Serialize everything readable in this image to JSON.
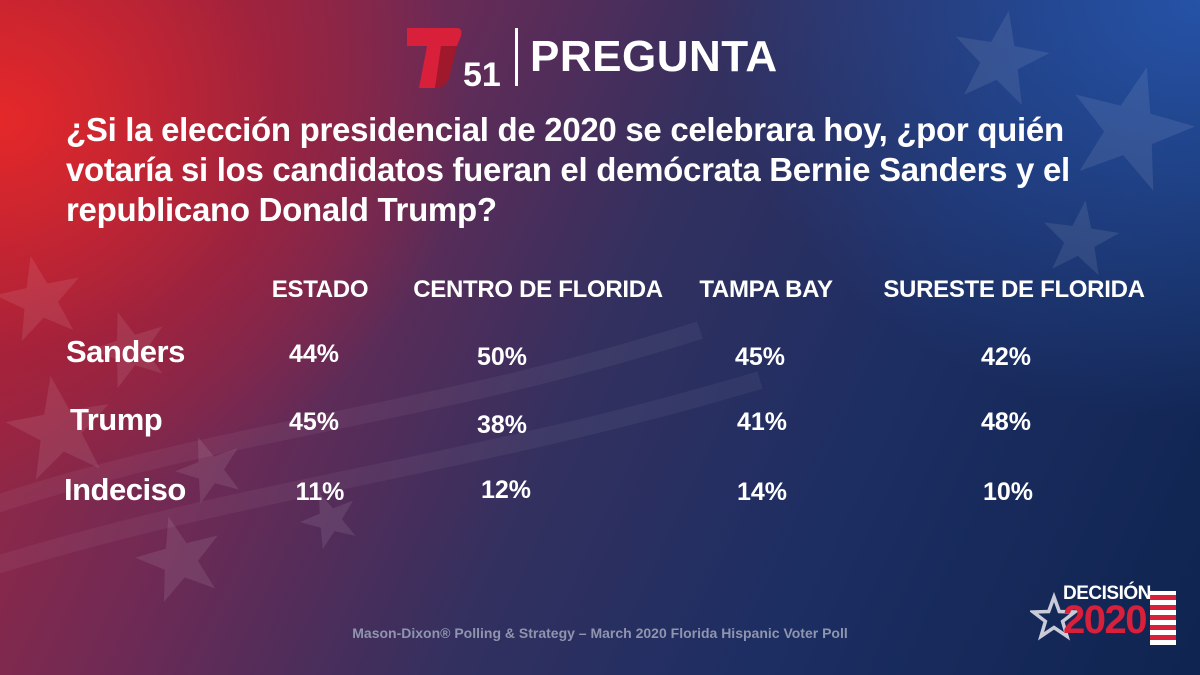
{
  "header": {
    "logo_number": "51",
    "title": "PREGUNTA"
  },
  "question": "¿Si la elección presidencial de 2020 se celebrara hoy, ¿por quién votaría si los candidatos fueran el demócrata Bernie Sanders y el republicano Donald Trump?",
  "chart_data": {
    "type": "table",
    "columns": [
      "ESTADO",
      "CENTRO DE FLORIDA",
      "TAMPA BAY",
      "SURESTE DE FLORIDA"
    ],
    "rows": [
      {
        "label": "Sanders",
        "values": [
          "44%",
          "50%",
          "45%",
          "42%"
        ]
      },
      {
        "label": "Trump",
        "values": [
          "45%",
          "38%",
          "41%",
          "48%"
        ]
      },
      {
        "label": "Indeciso",
        "values": [
          "11%",
          "12%",
          "14%",
          "10%"
        ]
      }
    ]
  },
  "source": "Mason-Dixon® Polling & Strategy – March 2020 Florida Hispanic Voter Poll",
  "badge": {
    "line1": "DECISIÓN",
    "line2": "2020"
  },
  "colors": {
    "logo_red": "#d8203a",
    "text": "#ffffff",
    "source_text": "#8f95ae"
  },
  "icons": {
    "logo": "telemundo-t-logo",
    "badge": "star-flag-icon"
  }
}
